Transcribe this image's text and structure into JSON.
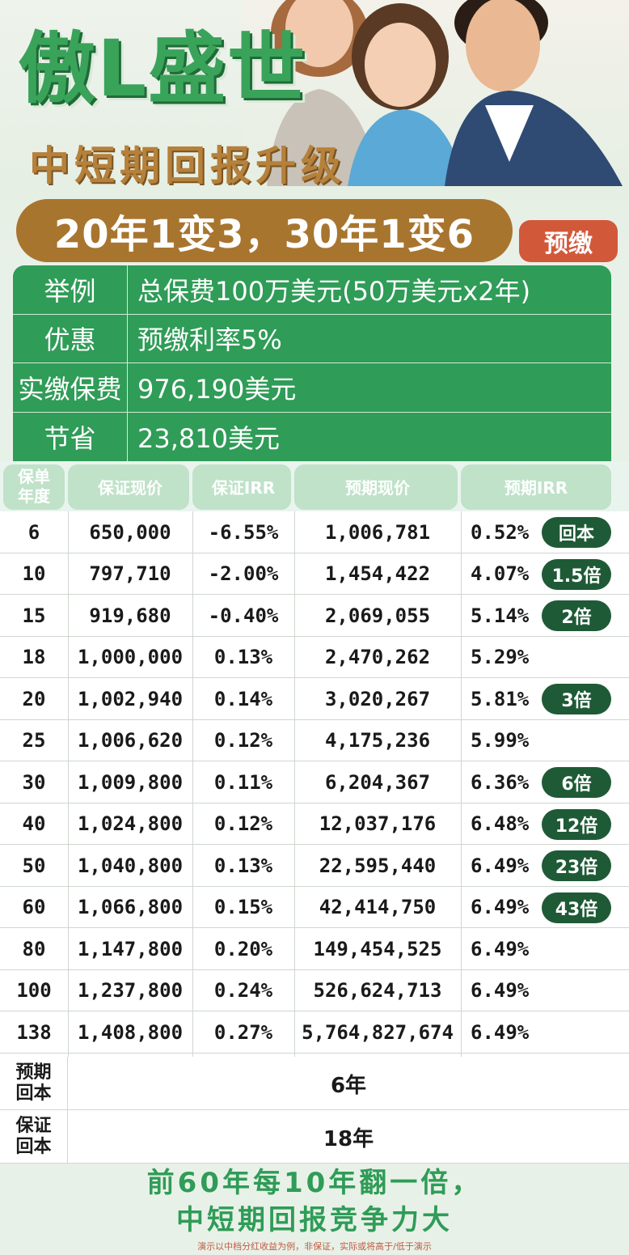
{
  "header": {
    "title": "傲L盛世",
    "subtitle": "中短期回报升级",
    "highlight": "20年1变3，30年1变6",
    "badge": "预缴"
  },
  "info": [
    {
      "key": "举例",
      "value": "总保费100万美元(50万美元x2年)"
    },
    {
      "key": "优惠",
      "value": "预缴利率5%"
    },
    {
      "key": "实缴保费",
      "value": "976,190美元"
    },
    {
      "key": "节省",
      "value": "23,810美元"
    }
  ],
  "table": {
    "headers": {
      "year_line1": "保单",
      "year_line2": "年度",
      "guaranteed_value": "保证现价",
      "guaranteed_irr": "保证IRR",
      "expected_value": "预期现价",
      "expected_irr": "预期IRR"
    },
    "rows": [
      {
        "year": "6",
        "gv": "650,000",
        "girr": "-6.55%",
        "ev": "1,006,781",
        "eirr": "0.52%",
        "badge": "回本"
      },
      {
        "year": "10",
        "gv": "797,710",
        "girr": "-2.00%",
        "ev": "1,454,422",
        "eirr": "4.07%",
        "badge": "1.5倍"
      },
      {
        "year": "15",
        "gv": "919,680",
        "girr": "-0.40%",
        "ev": "2,069,055",
        "eirr": "5.14%",
        "badge": "2倍"
      },
      {
        "year": "18",
        "gv": "1,000,000",
        "girr": "0.13%",
        "ev": "2,470,262",
        "eirr": "5.29%",
        "badge": ""
      },
      {
        "year": "20",
        "gv": "1,002,940",
        "girr": "0.14%",
        "ev": "3,020,267",
        "eirr": "5.81%",
        "badge": "3倍"
      },
      {
        "year": "25",
        "gv": "1,006,620",
        "girr": "0.12%",
        "ev": "4,175,236",
        "eirr": "5.99%",
        "badge": ""
      },
      {
        "year": "30",
        "gv": "1,009,800",
        "girr": "0.11%",
        "ev": "6,204,367",
        "eirr": "6.36%",
        "badge": "6倍"
      },
      {
        "year": "40",
        "gv": "1,024,800",
        "girr": "0.12%",
        "ev": "12,037,176",
        "eirr": "6.48%",
        "badge": "12倍"
      },
      {
        "year": "50",
        "gv": "1,040,800",
        "girr": "0.13%",
        "ev": "22,595,440",
        "eirr": "6.49%",
        "badge": "23倍"
      },
      {
        "year": "60",
        "gv": "1,066,800",
        "girr": "0.15%",
        "ev": "42,414,750",
        "eirr": "6.49%",
        "badge": "43倍"
      },
      {
        "year": "80",
        "gv": "1,147,800",
        "girr": "0.20%",
        "ev": "149,454,525",
        "eirr": "6.49%",
        "badge": ""
      },
      {
        "year": "100",
        "gv": "1,237,800",
        "girr": "0.24%",
        "ev": "526,624,713",
        "eirr": "6.49%",
        "badge": ""
      },
      {
        "year": "138",
        "gv": "1,408,800",
        "girr": "0.27%",
        "ev": "5,764,827,674",
        "eirr": "6.49%",
        "badge": ""
      }
    ]
  },
  "summary": [
    {
      "key": "预期回本",
      "value": "6年"
    },
    {
      "key": "保证回本",
      "value": "18年"
    }
  ],
  "footer": {
    "slogan_line1": "前60年每10年翻一倍，",
    "slogan_line2": "中短期回报竞争力大",
    "disclaimer": "演示以中档分红收益为例，非保证，实际或将高于/低于演示"
  }
}
